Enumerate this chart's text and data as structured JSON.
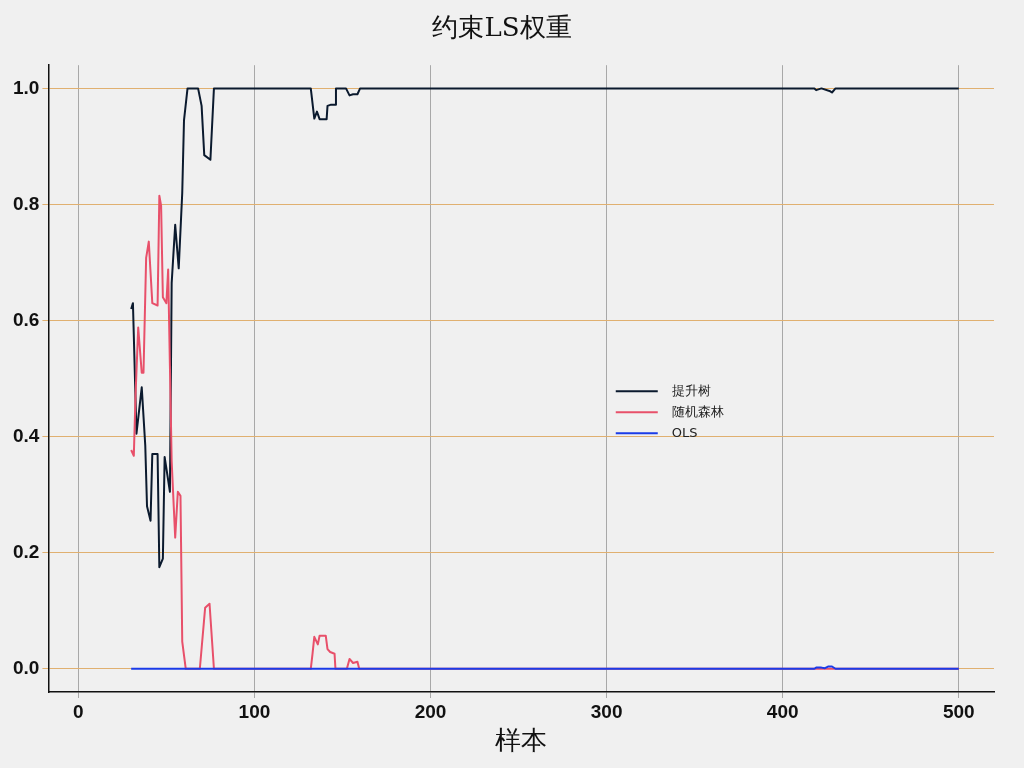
{
  "chart_data": {
    "type": "line",
    "title": "约束LS权重",
    "xlabel": "样本",
    "xlim": [
      -17,
      520
    ],
    "ylim": [
      -0.04,
      1.04
    ],
    "xticks": [
      0,
      100,
      200,
      300,
      400,
      500
    ],
    "yticks": [
      {
        "value": 0,
        "label": "0.0"
      },
      {
        "value": 0.2,
        "label": "0.2"
      },
      {
        "value": 0.4,
        "label": "0.4"
      },
      {
        "value": 0.6,
        "label": "0.6"
      },
      {
        "value": 0.8,
        "label": "0.8"
      },
      {
        "value": 1,
        "label": "1.0"
      }
    ],
    "grid": true,
    "legend": "right",
    "marker": "none",
    "line_style": "solid",
    "series": [
      {
        "name": "提升树",
        "color": "#0b1a2e",
        "x": [
          30,
          31,
          33,
          36,
          38,
          39,
          41,
          42,
          45,
          46,
          48,
          49,
          52,
          53,
          55,
          57,
          59,
          60,
          62,
          68,
          70,
          71.5,
          75,
          77,
          132,
          134,
          135.5,
          137,
          141,
          141.5,
          143.5,
          146,
          146.3,
          152,
          154,
          156,
          158.5,
          160,
          418,
          419,
          422,
          427,
          428,
          430,
          500
        ],
        "values": [
          0.62,
          0.63,
          0.405,
          0.485,
          0.385,
          0.28,
          0.255,
          0.37,
          0.37,
          0.175,
          0.19,
          0.365,
          0.305,
          0.665,
          0.765,
          0.69,
          0.82,
          0.945,
          1,
          1,
          0.97,
          0.885,
          0.877,
          1,
          1,
          0.948,
          0.96,
          0.947,
          0.947,
          0.97,
          0.972,
          0.972,
          1,
          1,
          0.988,
          0.99,
          0.99,
          1,
          1,
          0.997,
          1,
          0.995,
          0.993,
          1,
          1
        ]
      },
      {
        "name": "随机森林",
        "color": "#e8506a",
        "x": [
          30,
          31.5,
          32.5,
          34,
          36,
          37,
          38.5,
          40,
          42,
          45,
          46,
          47,
          48,
          50,
          51,
          52,
          53,
          55,
          56.5,
          58,
          59,
          61,
          69,
          72,
          74.5,
          77,
          132,
          133,
          134,
          136,
          137,
          140.5,
          141.5,
          143,
          145.5,
          146,
          152.5,
          154,
          156,
          158.5,
          159.5,
          500
        ],
        "values": [
          0.377,
          0.367,
          0.474,
          0.588,
          0.51,
          0.51,
          0.708,
          0.736,
          0.63,
          0.626,
          0.815,
          0.798,
          0.64,
          0.63,
          0.688,
          0.522,
          0.357,
          0.226,
          0.305,
          0.298,
          0.047,
          0,
          0,
          0.105,
          0.112,
          0,
          0,
          0.026,
          0.055,
          0.042,
          0.057,
          0.057,
          0.034,
          0.029,
          0.026,
          0,
          0,
          0.017,
          0.01,
          0.012,
          0,
          0
        ]
      },
      {
        "name": "OLS",
        "color": "#1a3be8",
        "x": [
          30,
          418,
          419,
          422,
          424,
          426,
          428,
          430,
          500
        ],
        "values": [
          0,
          0,
          0.002,
          0.002,
          0.001,
          0.004,
          0.004,
          0,
          0
        ]
      }
    ]
  }
}
